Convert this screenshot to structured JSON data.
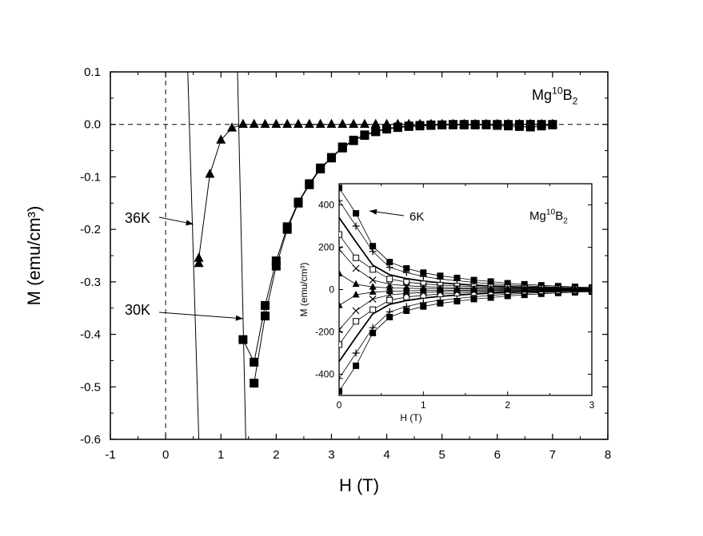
{
  "chart_data": [
    {
      "type": "scatter",
      "xlabel": "H (T)",
      "ylabel": "M (emu/cm³)",
      "xlim": [
        -1,
        8
      ],
      "ylim": [
        -0.6,
        0.1
      ],
      "xticks": [
        -1,
        0,
        1,
        2,
        3,
        4,
        5,
        6,
        7,
        8
      ],
      "yticks": [
        0.1,
        0.0,
        -0.1,
        -0.2,
        -0.3,
        -0.4,
        -0.5,
        -0.6
      ],
      "xtick_labels": [
        "-1",
        "0",
        "1",
        "2",
        "3",
        "4",
        "5",
        "6",
        "7",
        "8"
      ],
      "ytick_labels": [
        "0.1",
        "0.0",
        "-0.1",
        "-0.2",
        "-0.3",
        "-0.4",
        "-0.5",
        "-0.6"
      ],
      "reference_lines": {
        "y": 0,
        "x": 0,
        "style": "dashed"
      },
      "sample_label": {
        "base": "Mg",
        "sup": "10",
        "rest": "B",
        "sub": "2"
      },
      "series": [
        {
          "name": "36K",
          "marker": "triangle",
          "x": [
            0.6,
            0.6,
            0.8,
            1.0,
            1.2,
            1.4,
            1.6,
            1.8,
            2.0,
            2.2,
            2.4,
            2.6,
            2.8,
            3.0,
            3.2,
            3.4,
            3.6,
            3.8,
            4.0,
            4.2,
            4.4,
            4.6,
            4.8,
            5.0,
            5.2,
            5.4,
            5.6,
            5.8,
            6.0,
            6.2,
            6.4,
            6.6,
            6.8,
            7.0
          ],
          "y": [
            -0.265,
            -0.255,
            -0.095,
            -0.03,
            -0.007,
            0.0,
            0.0,
            0.0,
            0.0,
            0.0,
            0.0,
            0.0,
            0.0,
            0.0,
            0.0,
            0.0,
            0.0,
            0.0,
            0.0,
            0.0,
            0.0,
            0.0,
            0.0,
            0.0,
            0.0,
            0.0,
            0.0,
            0.0,
            0.0,
            0.0,
            0.0,
            0.0,
            0.0,
            0.0
          ],
          "virgin_curve": {
            "x": [
              0.4,
              0.6
            ],
            "y": [
              0.1,
              -0.6
            ]
          }
        },
        {
          "name": "30K",
          "marker": "square",
          "branches": [
            {
              "x": [
                1.4,
                1.6,
                1.8,
                2.0,
                2.2,
                2.4,
                2.6,
                2.8,
                3.0,
                3.2,
                3.4,
                3.6,
                3.8,
                4.0,
                4.2,
                4.4,
                4.6,
                4.8,
                5.0,
                5.2,
                5.4,
                5.6,
                5.8,
                6.0,
                6.2,
                6.4,
                6.6,
                6.8,
                7.0
              ],
              "y": [
                -0.41,
                -0.453,
                -0.345,
                -0.26,
                -0.195,
                -0.148,
                -0.113,
                -0.083,
                -0.063,
                -0.043,
                -0.03,
                -0.02,
                -0.013,
                -0.008,
                -0.005,
                -0.003,
                -0.002,
                -0.001,
                -0.001,
                0.0,
                0.0,
                0.0,
                0.0,
                0.0,
                0.0,
                0.0,
                0.0,
                0.0,
                0.0
              ]
            },
            {
              "x": [
                1.6,
                1.8,
                2.0,
                2.2,
                2.4,
                2.6,
                2.8,
                3.0,
                3.2,
                3.4,
                3.6,
                3.8,
                4.0,
                4.2,
                4.4,
                4.6,
                4.8,
                5.0,
                5.2,
                5.4,
                5.6,
                5.8,
                6.0,
                6.2,
                6.4,
                6.6,
                6.8,
                7.0
              ],
              "y": [
                -0.493,
                -0.365,
                -0.27,
                -0.2,
                -0.15,
                -0.115,
                -0.085,
                -0.064,
                -0.045,
                -0.031,
                -0.021,
                -0.014,
                -0.009,
                -0.006,
                -0.004,
                -0.003,
                -0.002,
                -0.001,
                -0.001,
                -0.001,
                -0.001,
                -0.001,
                -0.002,
                -0.003,
                -0.004,
                -0.005,
                -0.003,
                -0.001
              ]
            }
          ],
          "virgin_curve": {
            "x": [
              1.3,
              1.45
            ],
            "y": [
              0.1,
              -0.6
            ]
          }
        }
      ],
      "annotations": [
        {
          "text": "36K",
          "target": {
            "x": 0.5,
            "y": -0.19
          }
        },
        {
          "text": "30K",
          "target": {
            "x": 1.4,
            "y": -0.37
          }
        }
      ]
    },
    {
      "type": "scatter",
      "inset": true,
      "xlabel": "H (T)",
      "ylabel": "M (emu/cm³)",
      "xlim": [
        0,
        3
      ],
      "ylim": [
        -500,
        500
      ],
      "xticks": [
        0,
        1,
        2,
        3
      ],
      "yticks": [
        400,
        200,
        0,
        -200,
        -400
      ],
      "xtick_labels": [
        "0",
        "1",
        "2",
        "3"
      ],
      "ytick_labels": [
        "400",
        "200",
        "0",
        "-200",
        "-400"
      ],
      "sample_label": {
        "base": "Mg",
        "sup": "10",
        "rest": "B",
        "sub": "2"
      },
      "annotations": [
        {
          "text": "6K",
          "target": {
            "x": 0.42,
            "y": 450
          }
        }
      ],
      "x": [
        0.0,
        0.2,
        0.4,
        0.6,
        0.8,
        1.0,
        1.2,
        1.4,
        1.6,
        1.8,
        2.0,
        2.2,
        2.4,
        2.6,
        2.8,
        3.0
      ],
      "loops": [
        {
          "marker": "filled-square",
          "amplitude": [
            480,
            360,
            205,
            130,
            100,
            80,
            65,
            55,
            45,
            38,
            30,
            25,
            20,
            16,
            13,
            10
          ]
        },
        {
          "marker": "plus",
          "amplitude": [
            420,
            300,
            180,
            105,
            80,
            62,
            50,
            42,
            34,
            28,
            22,
            18,
            14,
            11,
            9,
            7
          ]
        },
        {
          "marker": "solid-line",
          "amplitude": [
            340,
            225,
            115,
            70,
            52,
            40,
            32,
            26,
            21,
            17,
            14,
            11,
            9,
            7,
            6,
            5
          ]
        },
        {
          "marker": "open-square",
          "amplitude": [
            260,
            150,
            95,
            50,
            35,
            27,
            21,
            17,
            14,
            11,
            9,
            7,
            6,
            5,
            4,
            3
          ]
        },
        {
          "marker": "cross",
          "amplitude": [
            190,
            100,
            45,
            25,
            18,
            14,
            11,
            9,
            7,
            6,
            5,
            4,
            3,
            3,
            2,
            2
          ]
        },
        {
          "marker": "filled-triangle",
          "amplitude": [
            75,
            25,
            12,
            8,
            6,
            5,
            4,
            3,
            3,
            2,
            2,
            2,
            1,
            1,
            1,
            1
          ]
        }
      ]
    }
  ]
}
